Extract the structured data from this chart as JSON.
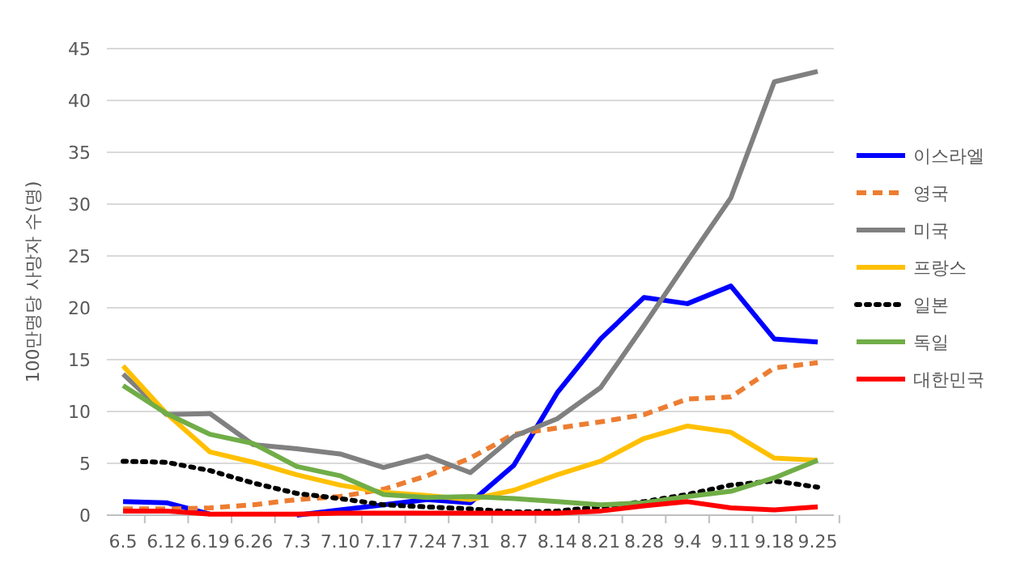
{
  "chart_data": {
    "type": "line",
    "ylabel": "100만명당 사망자 수(명)",
    "categories": [
      "6.5",
      "6.12",
      "6.19",
      "6.26",
      "7.3",
      "7.10",
      "7.17",
      "7.24",
      "7.31",
      "8.7",
      "8.14",
      "8.21",
      "8.28",
      "9.4",
      "9.11",
      "9.18",
      "9.25"
    ],
    "ylim": [
      0,
      45
    ],
    "yticks": [
      0,
      5,
      10,
      15,
      20,
      25,
      30,
      35,
      40,
      45
    ],
    "grid": "y",
    "legend": "right",
    "marker": "none",
    "series": [
      {
        "name": "이스라엘",
        "color": "#0000ff",
        "line_style": "solid",
        "values": [
          1.3,
          1.2,
          0.1,
          null,
          0,
          0.5,
          1.0,
          1.5,
          1.2,
          4.8,
          11.8,
          17,
          21,
          20.4,
          22.1,
          17,
          16.7
        ]
      },
      {
        "name": "영국",
        "color": "#ed7d31",
        "line_style": "dashed",
        "values": [
          0.6,
          0.6,
          0.7,
          1.0,
          1.5,
          1.8,
          2.5,
          3.8,
          5.5,
          7.8,
          8.4,
          9.0,
          9.7,
          11.2,
          11.4,
          14.2,
          14.7
        ]
      },
      {
        "name": "미국",
        "color": "#808080",
        "line_style": "solid",
        "values": [
          13.6,
          9.7,
          9.8,
          6.8,
          6.4,
          5.9,
          4.6,
          5.7,
          4.1,
          7.6,
          9.3,
          12.3,
          18.3,
          24.5,
          30.6,
          41.8,
          42.8
        ]
      },
      {
        "name": "프랑스",
        "color": "#ffc000",
        "line_style": "solid",
        "values": [
          14.4,
          9.8,
          6.1,
          5.1,
          3.9,
          2.9,
          2.2,
          1.9,
          1.5,
          2.4,
          3.9,
          5.2,
          7.4,
          8.6,
          8.0,
          5.5,
          5.3
        ]
      },
      {
        "name": "일본",
        "color": "#000000",
        "line_style": "dotted",
        "values": [
          5.2,
          5.1,
          4.3,
          3.1,
          2.1,
          1.6,
          1.0,
          0.8,
          0.6,
          0.3,
          0.4,
          0.8,
          1.3,
          2.0,
          2.9,
          3.3,
          2.7
        ]
      },
      {
        "name": "독일",
        "color": "#70ad47",
        "line_style": "solid",
        "values": [
          12.5,
          9.8,
          7.8,
          6.9,
          4.7,
          3.8,
          2.0,
          1.7,
          1.8,
          1.6,
          1.3,
          1.0,
          1.2,
          1.8,
          2.3,
          3.6,
          5.3
        ]
      },
      {
        "name": "대한민국",
        "color": "#ff0000",
        "line_style": "solid",
        "values": [
          0.4,
          0.4,
          0.1,
          0.1,
          0.1,
          0.2,
          0.2,
          0.2,
          0.2,
          0.2,
          0.2,
          0.4,
          0.9,
          1.3,
          0.7,
          0.5,
          0.8
        ]
      }
    ]
  }
}
